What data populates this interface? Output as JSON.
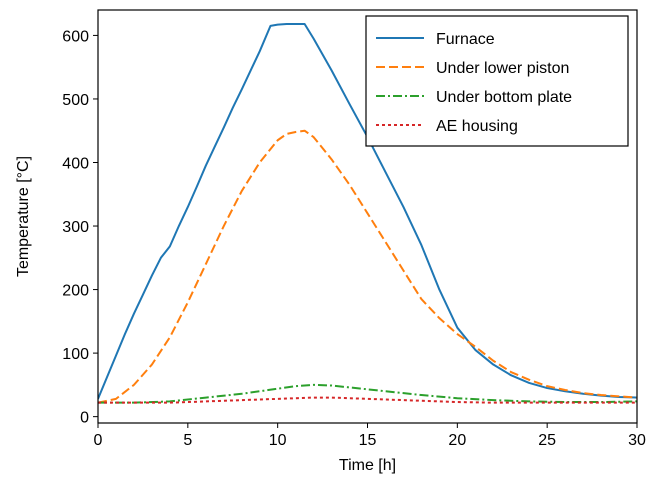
{
  "chart_data": {
    "type": "line",
    "xlabel": "Time [h]",
    "ylabel": "Temperature [°C]",
    "xlim": [
      0,
      30
    ],
    "ylim": [
      -10,
      640
    ],
    "xticks": [
      0,
      5,
      10,
      15,
      20,
      25,
      30
    ],
    "yticks": [
      0,
      100,
      200,
      300,
      400,
      500,
      600
    ],
    "grid": false,
    "legend": "top-right",
    "series": [
      {
        "name": "Furnace",
        "color": "#1f77b4",
        "dash": "solid",
        "x": [
          0,
          0.5,
          1,
          1.5,
          2,
          2.5,
          3,
          3.5,
          4,
          4.5,
          5,
          5.5,
          6,
          6.5,
          7,
          7.5,
          8,
          8.5,
          9,
          9.6,
          10,
          10.5,
          11,
          11.5,
          12,
          13,
          14,
          15,
          16,
          17,
          18,
          19,
          20,
          21,
          22,
          23,
          24,
          25,
          26,
          27,
          28,
          29,
          30
        ],
        "y": [
          28,
          62,
          96,
          130,
          162,
          192,
          222,
          250,
          268,
          300,
          330,
          362,
          395,
          425,
          455,
          486,
          515,
          545,
          575,
          615,
          617,
          618,
          618,
          618,
          595,
          545,
          492,
          440,
          385,
          330,
          270,
          200,
          140,
          105,
          82,
          65,
          53,
          45,
          40,
          36,
          33,
          31,
          30
        ]
      },
      {
        "name": "Under lower piston",
        "color": "#ff7f0e",
        "dash": "dashed",
        "x": [
          0,
          1,
          2,
          3,
          4,
          5,
          6,
          7,
          8,
          9,
          10,
          10.5,
          11,
          11.5,
          12,
          13,
          14,
          15,
          16,
          17,
          18,
          19,
          20,
          21,
          22,
          23,
          24,
          25,
          26,
          27,
          28,
          29,
          30
        ],
        "y": [
          22,
          28,
          50,
          82,
          125,
          180,
          240,
          300,
          355,
          400,
          435,
          445,
          448,
          450,
          440,
          405,
          365,
          320,
          275,
          230,
          185,
          155,
          130,
          110,
          88,
          70,
          58,
          48,
          42,
          37,
          34,
          32,
          30
        ]
      },
      {
        "name": "Under bottom plate",
        "color": "#2ca02c",
        "dash": "dashdot",
        "x": [
          0,
          2,
          4,
          6,
          8,
          10,
          11,
          12,
          13,
          14,
          16,
          18,
          20,
          22,
          24,
          26,
          28,
          30
        ],
        "y": [
          22,
          22,
          24,
          30,
          36,
          44,
          48,
          50,
          49,
          46,
          40,
          34,
          29,
          26,
          24,
          23,
          23,
          24
        ]
      },
      {
        "name": "AE housing",
        "color": "#d62728",
        "dash": "dotted",
        "x": [
          0,
          2,
          4,
          6,
          8,
          10,
          11,
          12,
          13,
          14,
          16,
          18,
          20,
          22,
          24,
          26,
          28,
          30
        ],
        "y": [
          22,
          22,
          22,
          24,
          26,
          28,
          29,
          30,
          30,
          29,
          27,
          25,
          23,
          22,
          22,
          22,
          22,
          22
        ]
      }
    ]
  }
}
